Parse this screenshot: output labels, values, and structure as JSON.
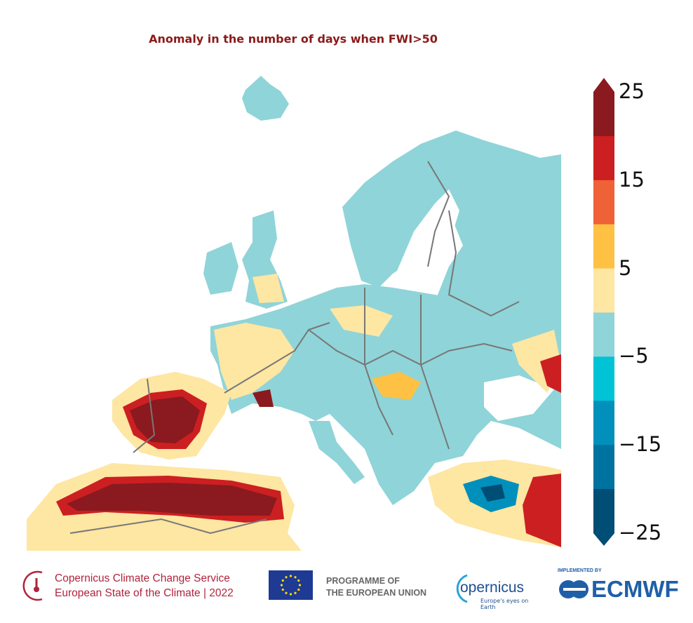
{
  "title": "Anomaly in the number of days when FWI>50",
  "colorbar": {
    "ticks": [
      "25",
      "15",
      "5",
      "−5",
      "−15",
      "−25"
    ],
    "bins": [
      {
        "from": 20,
        "to": 25,
        "color": "#8a1a1f"
      },
      {
        "from": 15,
        "to": 20,
        "color": "#cc1f21"
      },
      {
        "from": 10,
        "to": 15,
        "color": "#ef6136"
      },
      {
        "from": 5,
        "to": 10,
        "color": "#fec143"
      },
      {
        "from": 0,
        "to": 5,
        "color": "#fee6a3"
      },
      {
        "from": -5,
        "to": 0,
        "color": "#8fd4d8"
      },
      {
        "from": -10,
        "to": -5,
        "color": "#00c3d6"
      },
      {
        "from": -15,
        "to": -10,
        "color": "#0090bb"
      },
      {
        "from": -20,
        "to": -15,
        "color": "#0072a0"
      },
      {
        "from": -25,
        "to": -20,
        "color": "#004d75"
      }
    ],
    "extend": "both"
  },
  "footer": {
    "c3s_line1": "Copernicus Climate Change Service",
    "c3s_line2": "European State of the Climate | 2022",
    "eu_line1": "PROGRAMME OF",
    "eu_line2": "THE EUROPEAN UNION",
    "copernicus": "opernicus",
    "copernicus_tagline": "Europe's eyes on Earth",
    "ecmwf_small": "IMPLEMENTED BY",
    "ecmwf": "ECMWF"
  }
}
